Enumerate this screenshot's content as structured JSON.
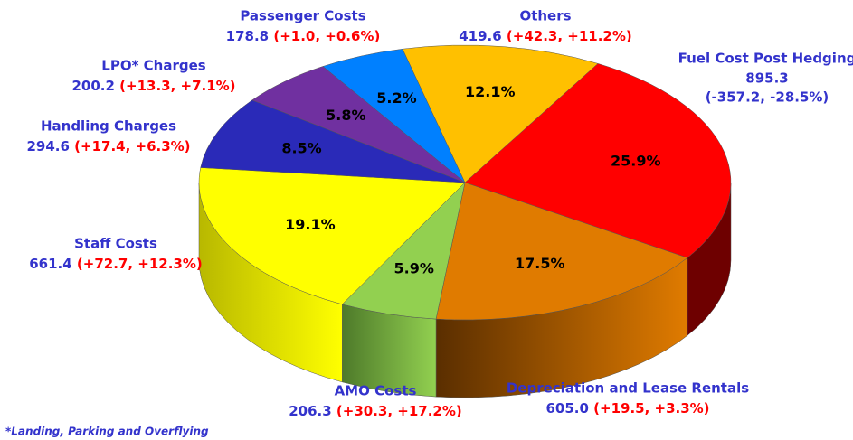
{
  "chart_data": {
    "type": "pie",
    "categories": [
      "Fuel Cost Post Hedging",
      "Depreciation and Lease Rentals",
      "AMO Costs",
      "Staff Costs",
      "Handling Charges",
      "LPO* Charges",
      "Passenger Costs",
      "Others"
    ],
    "values": [
      25.9,
      17.5,
      5.9,
      19.1,
      8.5,
      5.8,
      5.2,
      12.1
    ],
    "value_labels": [
      "25.9%",
      "17.5%",
      "5.9%",
      "19.1%",
      "8.5%",
      "5.8%",
      "5.2%",
      "12.1%"
    ],
    "amounts": [
      895.3,
      605.0,
      206.3,
      661.4,
      294.6,
      200.2,
      178.8,
      419.6
    ],
    "amount_labels": [
      "895.3",
      "605.0",
      "206.3",
      "661.4",
      "294.6",
      "200.2",
      "178.8",
      "419.6"
    ],
    "change_labels": [
      "(-357.2, -28.5%)",
      "(+19.5, +3.3%)",
      "(+30.3, +17.2%)",
      "(+72.7, +12.3%)",
      "(+17.4, +6.3%)",
      "(+13.3, +7.1%)",
      "(+1.0, +0.6%)",
      "(+42.3, +11.2%)"
    ],
    "colors": [
      "#ff0000",
      "#e07b00",
      "#92d050",
      "#ffff00",
      "#2a2ab8",
      "#7030a0",
      "#0080ff",
      "#ffc000"
    ],
    "side_colors": [
      "#6e0000",
      "#5a2e00",
      "#4e7a2a",
      "#b8b800",
      "#15156a",
      "#3a1658",
      "#004488",
      "#9a7000"
    ],
    "footnote": "*Landing, Parking and Overflying"
  }
}
